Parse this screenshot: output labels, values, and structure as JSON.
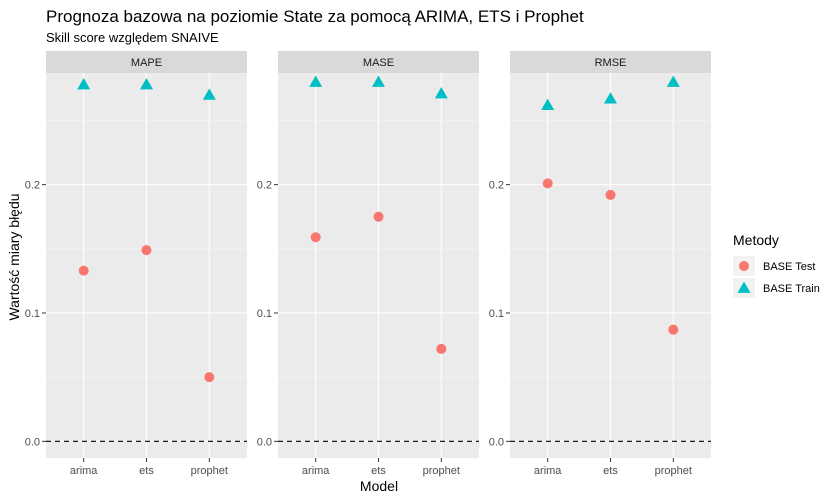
{
  "chart_data": {
    "type": "scatter",
    "title": "Prognoza bazowa na poziomie State za pomocą ARIMA, ETS i Prophet",
    "subtitle": "Skill score względem SNAIVE",
    "xlabel": "Model",
    "ylabel": "Wartość miary błędu",
    "categories": [
      "arima",
      "ets",
      "prophet"
    ],
    "legend": {
      "title": "Metody",
      "position": "right",
      "entries": [
        {
          "name": "BASE Test",
          "shape": "circle",
          "color": "#F8766D"
        },
        {
          "name": "BASE Train",
          "shape": "triangle",
          "color": "#00BFC4"
        }
      ]
    },
    "reference_line": {
      "y": 0,
      "style": "dashed"
    },
    "grid": true,
    "facets": [
      {
        "label": "MAPE",
        "ylim": [
          -0.013,
          0.287
        ],
        "yticks": [
          0.0,
          0.1,
          0.2
        ],
        "ytick_labels": [
          "0.0",
          "0.1",
          "0.2"
        ],
        "series": [
          {
            "name": "BASE Test",
            "values": [
              0.133,
              0.149,
              0.05
            ]
          },
          {
            "name": "BASE Train",
            "values": [
              0.278,
              0.278,
              0.27
            ]
          }
        ]
      },
      {
        "label": "MASE",
        "ylim": [
          -0.013,
          0.287
        ],
        "yticks": [
          0.0,
          0.1,
          0.2
        ],
        "ytick_labels": [
          "0.0",
          "0.1",
          "0.2"
        ],
        "series": [
          {
            "name": "BASE Test",
            "values": [
              0.159,
              0.175,
              0.072
            ]
          },
          {
            "name": "BASE Train",
            "values": [
              0.28,
              0.28,
              0.271
            ]
          }
        ]
      },
      {
        "label": "RMSE",
        "ylim": [
          -0.013,
          0.287
        ],
        "yticks": [
          0.0,
          0.1,
          0.2
        ],
        "ytick_labels": [
          "0.0",
          "0.1",
          "0.2"
        ],
        "series": [
          {
            "name": "BASE Test",
            "values": [
              0.201,
              0.192,
              0.087
            ]
          },
          {
            "name": "BASE Train",
            "values": [
              0.262,
              0.267,
              0.28
            ]
          }
        ]
      }
    ]
  }
}
